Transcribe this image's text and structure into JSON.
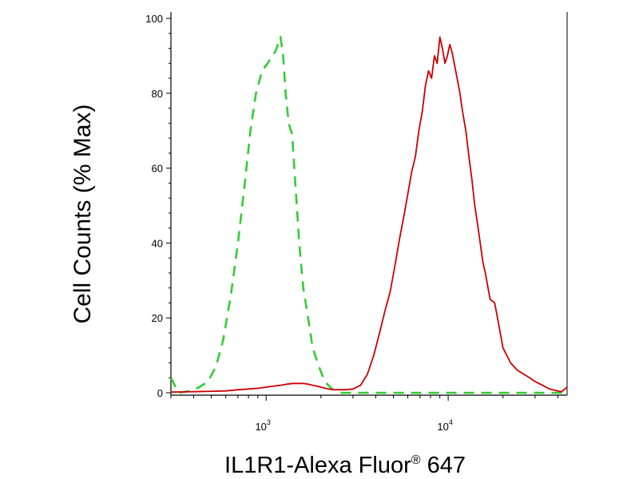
{
  "chart_data": {
    "type": "line",
    "xlabel": "IL1R1-Alexa Fluor",
    "xlabel_sup": "®",
    "xlabel_suffix": " 647",
    "ylabel": "Cell Counts (% Max)",
    "x_scale": "log",
    "xlim": [
      300,
      45000
    ],
    "ylim": [
      0,
      100
    ],
    "grid": false,
    "legend": "none",
    "y_ticks": [
      0,
      20,
      40,
      60,
      80,
      100
    ],
    "x_ticks": [
      {
        "value": 1000,
        "base": "10",
        "exp": "3"
      },
      {
        "value": 10000,
        "base": "10",
        "exp": "4"
      }
    ],
    "series": [
      {
        "color": "#33cc33",
        "dash": "dashed",
        "x": [
          300,
          330,
          380,
          430,
          480,
          530,
          580,
          640,
          700,
          760,
          820,
          880,
          950,
          1020,
          1080,
          1120,
          1160,
          1200,
          1240,
          1280,
          1330,
          1390,
          1450,
          1520,
          1600,
          1700,
          1800,
          1950,
          2100,
          2300,
          2600,
          3000,
          3500,
          4500,
          6000,
          10000,
          20000,
          45000
        ],
        "y": [
          4,
          0,
          0.5,
          1.5,
          3,
          7,
          14,
          26,
          40,
          55,
          70,
          80,
          86,
          88,
          90,
          91,
          93,
          95,
          90,
          80,
          72,
          69,
          55,
          40,
          28,
          20,
          12,
          7,
          3,
          1,
          0,
          0,
          0,
          0,
          0,
          0,
          0,
          0
        ]
      },
      {
        "color": "#cc0000",
        "dash": "solid",
        "x": [
          300,
          400,
          500,
          600,
          700,
          800,
          900,
          1000,
          1100,
          1200,
          1300,
          1400,
          1500,
          1600,
          1700,
          1800,
          1900,
          2000,
          2200,
          2400,
          2700,
          3000,
          3300,
          3600,
          3900,
          4200,
          4500,
          4800,
          5100,
          5400,
          5700,
          6000,
          6300,
          6600,
          6900,
          7200,
          7500,
          7800,
          8100,
          8400,
          8700,
          9000,
          9300,
          9600,
          9900,
          10200,
          10500,
          10800,
          11200,
          11600,
          12000,
          12500,
          13000,
          13500,
          14000,
          14500,
          15000,
          15500,
          16000,
          17000,
          18000,
          19000,
          20000,
          22000,
          24000,
          26000,
          28000,
          30000,
          33000,
          36000,
          40000,
          42000,
          45000
        ],
        "y": [
          0.2,
          0.3,
          0.4,
          0.5,
          0.8,
          1,
          1.2,
          1.5,
          1.8,
          2,
          2.3,
          2.5,
          2.5,
          2.5,
          2.3,
          2,
          1.8,
          1.5,
          1,
          0.8,
          0.8,
          1,
          2,
          5,
          10,
          16,
          22,
          27,
          34,
          41,
          47,
          53,
          59,
          63,
          70,
          75,
          82,
          86,
          84,
          90,
          88,
          95,
          92,
          88,
          90,
          93,
          91,
          88,
          84,
          80,
          75,
          70,
          63,
          57,
          50,
          45,
          40,
          35,
          32,
          25,
          24,
          18,
          12,
          8,
          6,
          5,
          4,
          3,
          2,
          1,
          0.5,
          0.3,
          1.5
        ]
      }
    ]
  }
}
